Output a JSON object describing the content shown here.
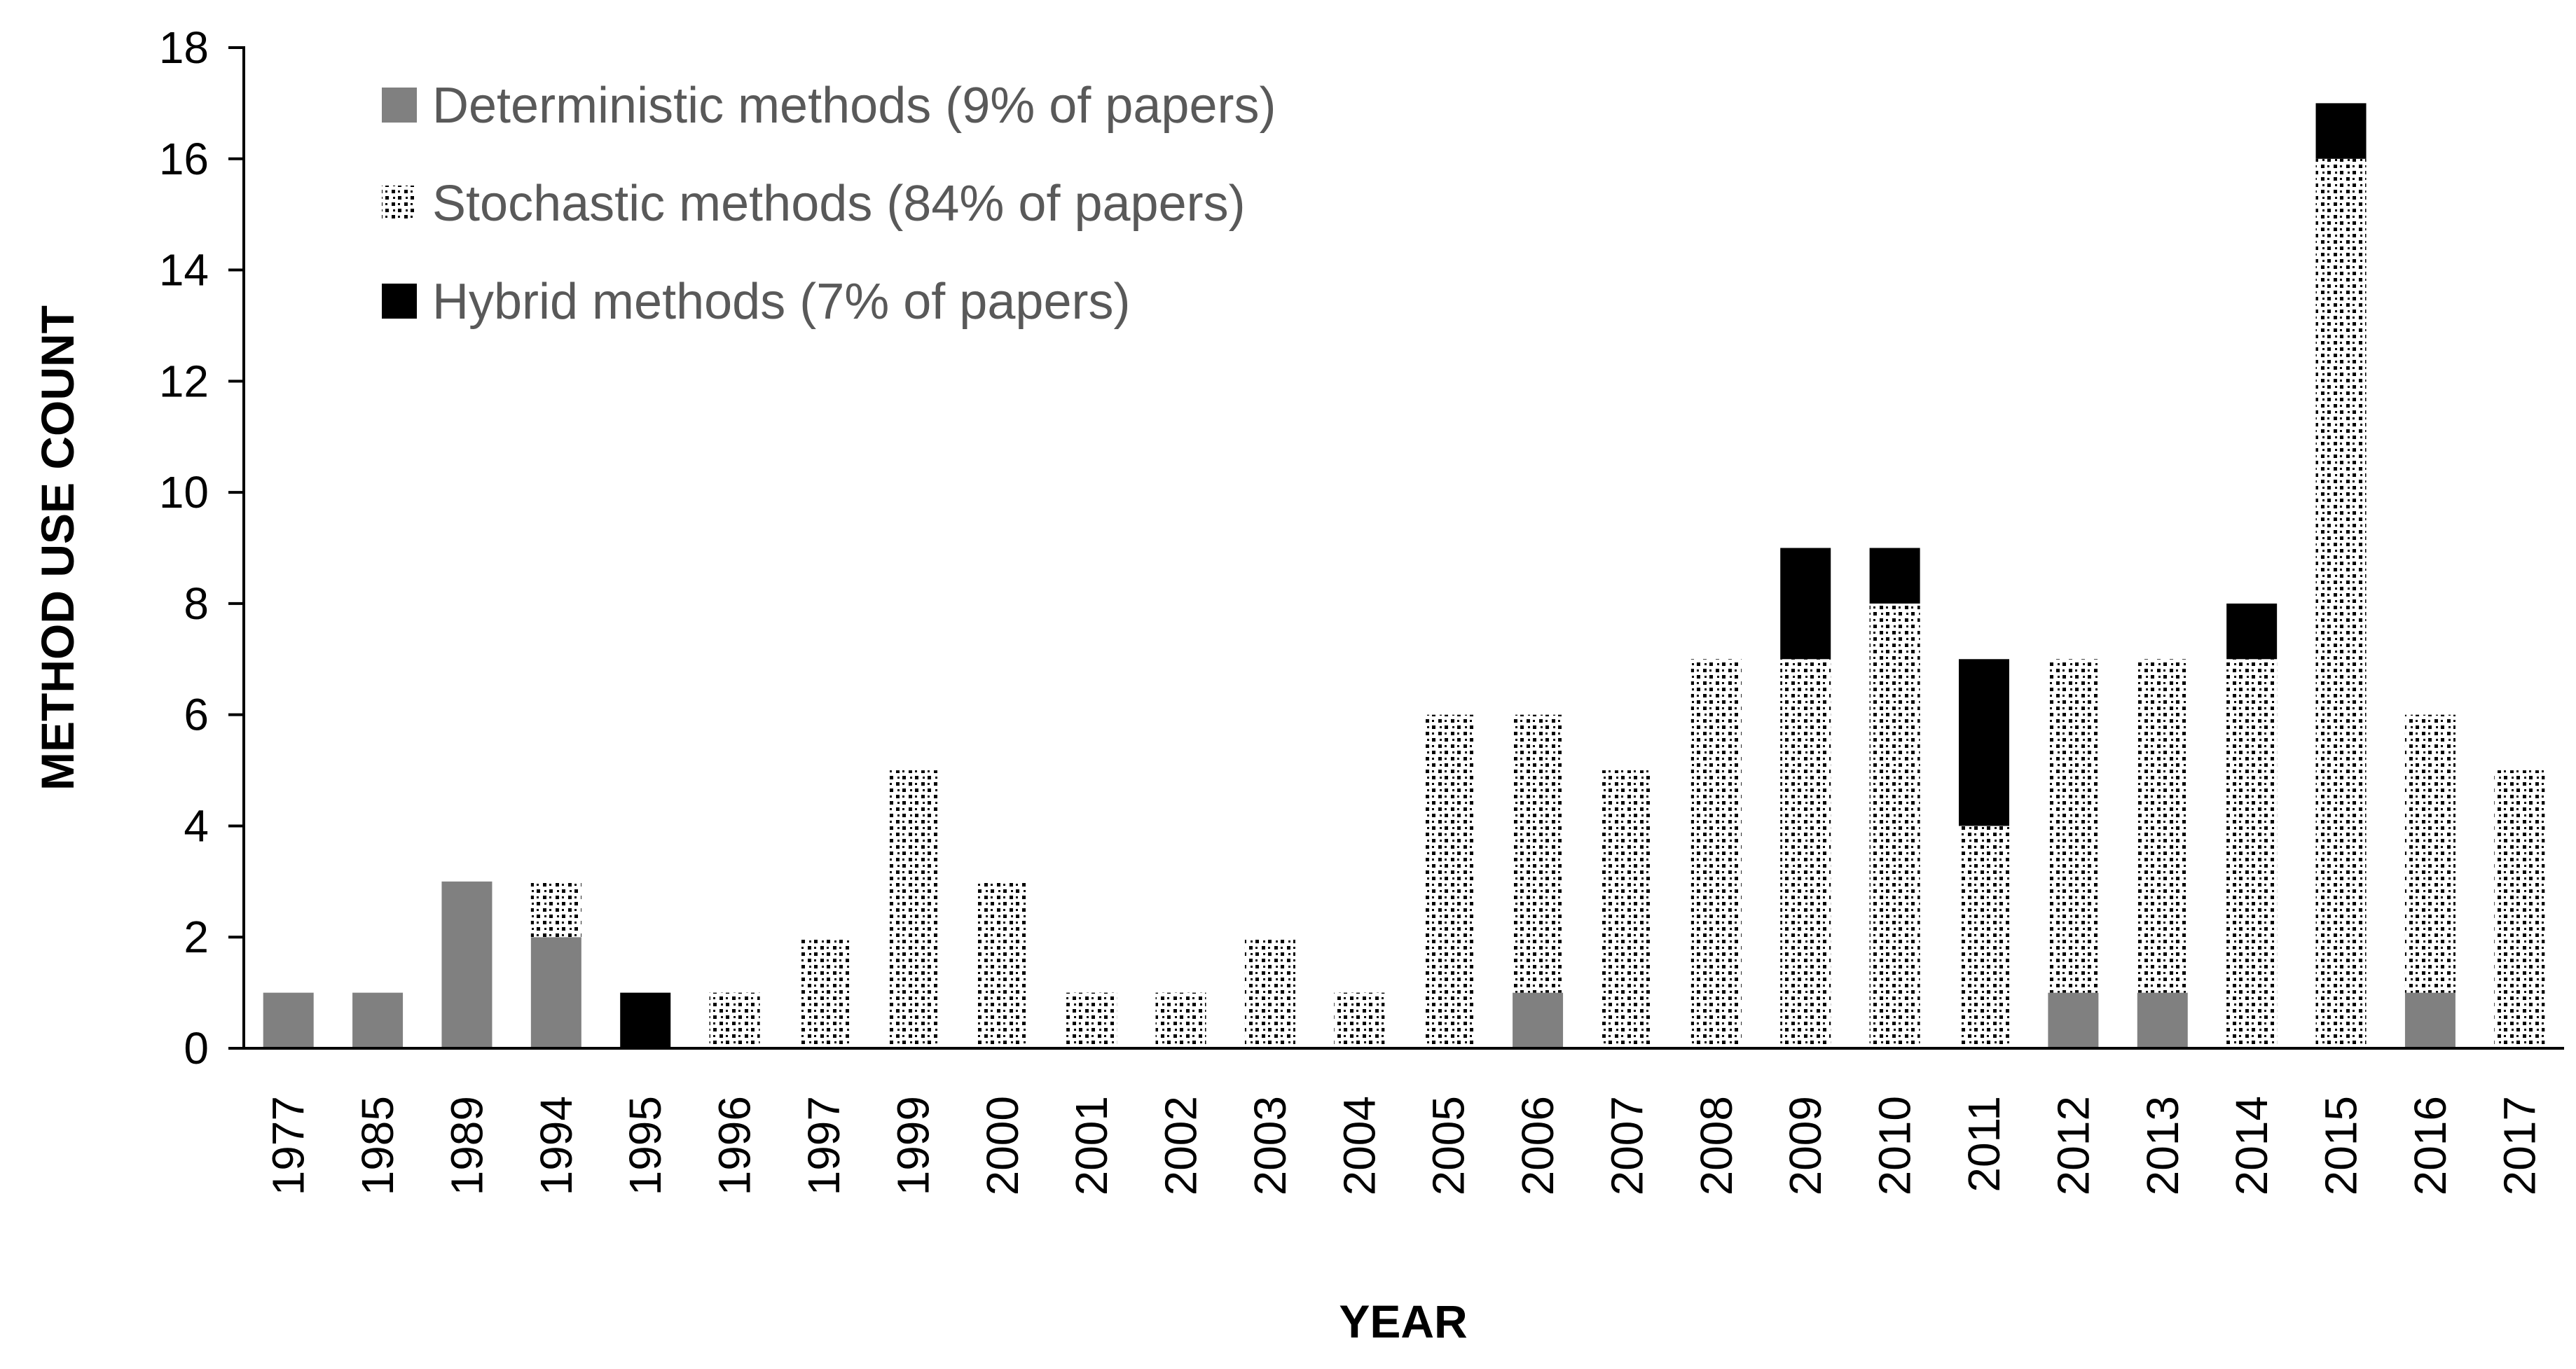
{
  "chart_data": {
    "type": "bar",
    "stacked": true,
    "xlabel": "YEAR",
    "ylabel": "METHOD USE COUNT",
    "ylim": [
      0,
      18
    ],
    "yticks": [
      0,
      2,
      4,
      6,
      8,
      10,
      12,
      14,
      16,
      18
    ],
    "grid": false,
    "legend_position": "top-left",
    "categories": [
      "1977",
      "1985",
      "1989",
      "1994",
      "1995",
      "1996",
      "1997",
      "1999",
      "2000",
      "2001",
      "2002",
      "2003",
      "2004",
      "2005",
      "2006",
      "2007",
      "2008",
      "2009",
      "2010",
      "2011",
      "2012",
      "2013",
      "2014",
      "2015",
      "2016",
      "2017"
    ],
    "series": [
      {
        "name": "Deterministic methods (9% of papers)",
        "pattern": "solid-gray",
        "color": "#808080",
        "values": [
          1,
          1,
          3,
          2,
          0,
          0,
          0,
          0,
          0,
          0,
          0,
          0,
          0,
          0,
          1,
          0,
          0,
          0,
          0,
          0,
          1,
          1,
          0,
          0,
          1,
          0
        ]
      },
      {
        "name": "Stochastic methods (84% of papers)",
        "pattern": "dotted",
        "color": "#000000",
        "values": [
          0,
          0,
          0,
          1,
          0,
          1,
          2,
          5,
          3,
          1,
          1,
          2,
          1,
          6,
          5,
          5,
          7,
          7,
          8,
          4,
          6,
          6,
          7,
          16,
          5,
          5
        ]
      },
      {
        "name": "Hybrid methods (7% of papers)",
        "pattern": "solid-black",
        "color": "#000000",
        "values": [
          0,
          0,
          0,
          0,
          1,
          0,
          0,
          0,
          0,
          0,
          0,
          0,
          0,
          0,
          0,
          0,
          0,
          2,
          1,
          3,
          0,
          0,
          1,
          1,
          0,
          0
        ]
      }
    ]
  }
}
